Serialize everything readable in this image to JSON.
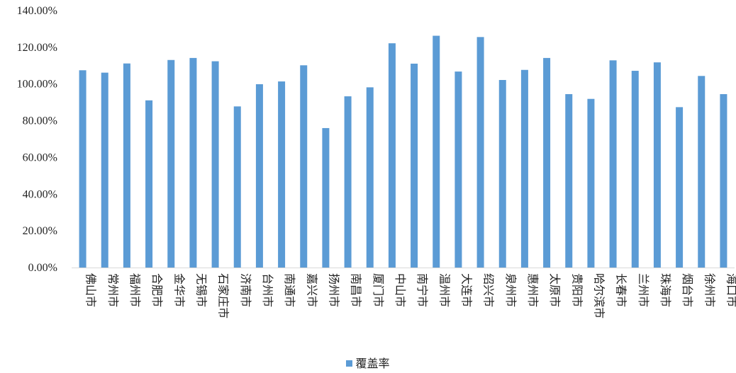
{
  "chart_data": {
    "type": "bar",
    "categories": [
      "佛山市",
      "常州市",
      "福州市",
      "合肥市",
      "金华市",
      "无锡市",
      "石家庄市",
      "济南市",
      "台州市",
      "南通市",
      "嘉兴市",
      "扬州市",
      "南昌市",
      "厦门市",
      "中山市",
      "南宁市",
      "温州市",
      "大连市",
      "绍兴市",
      "泉州市",
      "惠州市",
      "太原市",
      "贵阳市",
      "哈尔滨市",
      "长春市",
      "兰州市",
      "珠海市",
      "烟台市",
      "徐州市",
      "海口市"
    ],
    "series": [
      {
        "name": "覆盖率",
        "color": "#5b9bd5",
        "values": [
          107.5,
          106.2,
          111.2,
          91.1,
          113.1,
          114.2,
          112.4,
          87.8,
          99.9,
          101.4,
          110.2,
          76.0,
          93.3,
          98.2,
          122.2,
          111.1,
          126.3,
          106.8,
          125.6,
          102.2,
          107.7,
          114.2,
          94.5,
          91.9,
          112.9,
          107.2,
          111.8,
          87.4,
          104.4,
          94.5
        ]
      }
    ],
    "ylim": [
      0,
      140
    ],
    "yticks": [
      "0.00%",
      "20.00%",
      "40.00%",
      "60.00%",
      "80.00%",
      "100.00%",
      "120.00%",
      "140.00%"
    ],
    "legend_position": "bottom"
  }
}
